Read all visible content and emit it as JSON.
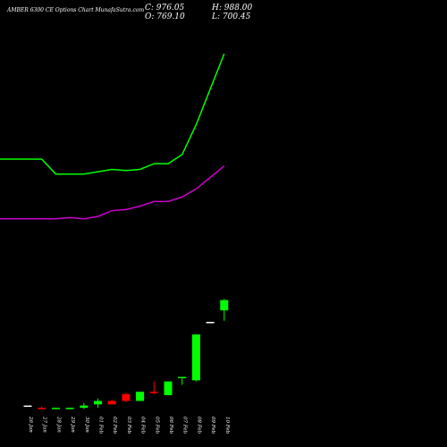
{
  "header": {
    "title": "AMBER 6300  CE Options  Chart MunafaSutra.com",
    "close": "C: 976.05",
    "open": "O: 769.10",
    "high": "H: 988.00",
    "low": "L: 700.45"
  },
  "chart_data": {
    "type": "candlestick",
    "categories": [
      "26 Jan",
      "27 Jan",
      "28 Jan",
      "29 Jan",
      "30 Jan",
      "01 Feb",
      "02 Feb",
      "03 Feb",
      "04 Feb",
      "05 Feb",
      "06 Feb",
      "07 Feb",
      "08 Feb",
      "09 Feb",
      "10 Feb"
    ],
    "candles": [
      {
        "o": 5,
        "h": 5,
        "l": 5,
        "c": 5
      },
      {
        "o": 3,
        "h": 4,
        "l": 2,
        "c": 2,
        "color": "#ff0000"
      },
      {
        "o": 2,
        "h": 3,
        "l": 2,
        "c": 3,
        "color": "#00ff00"
      },
      {
        "o": 2,
        "h": 3,
        "l": 2,
        "c": 3,
        "color": "#00ff00"
      },
      {
        "o": 3,
        "h": 7,
        "l": 2,
        "c": 5,
        "color": "#00ff00"
      },
      {
        "o": 6,
        "h": 11,
        "l": 3,
        "c": 9,
        "color": "#00ff00"
      },
      {
        "o": 9,
        "h": 10,
        "l": 6,
        "c": 6,
        "color": "#ff0000"
      },
      {
        "o": 15,
        "h": 16,
        "l": 8,
        "c": 9,
        "color": "#ff0000"
      },
      {
        "o": 9,
        "h": 17,
        "l": 9,
        "c": 17,
        "color": "#00ff00"
      },
      {
        "o": 17,
        "h": 26,
        "l": 15,
        "c": 17,
        "color": "#ff0000"
      },
      {
        "o": 14,
        "h": 26,
        "l": 14,
        "c": 26,
        "color": "#00ff00"
      },
      {
        "o": 30,
        "h": 30,
        "l": 23,
        "c": 30,
        "color": "#00ff00"
      },
      {
        "o": 27,
        "h": 67,
        "l": 26,
        "c": 67,
        "color": "#00ff00"
      },
      {
        "o": 78,
        "h": 78,
        "l": 78,
        "c": 78
      },
      {
        "o": 88,
        "h": 98,
        "l": 79,
        "c": 97,
        "color": "#00ff00"
      }
    ],
    "moving_averages": [
      {
        "color": "#00ff00",
        "values": [
          220,
          220,
          207,
          207,
          207,
          209,
          211,
          210,
          211,
          216,
          216,
          224,
          250,
          281,
          312
        ]
      },
      {
        "color": "#cc00cc",
        "values": [
          168,
          168,
          168,
          169,
          168,
          170,
          175,
          176,
          179,
          183,
          183,
          187,
          194,
          204,
          214
        ]
      }
    ],
    "ylim": [
      0,
      330
    ]
  }
}
